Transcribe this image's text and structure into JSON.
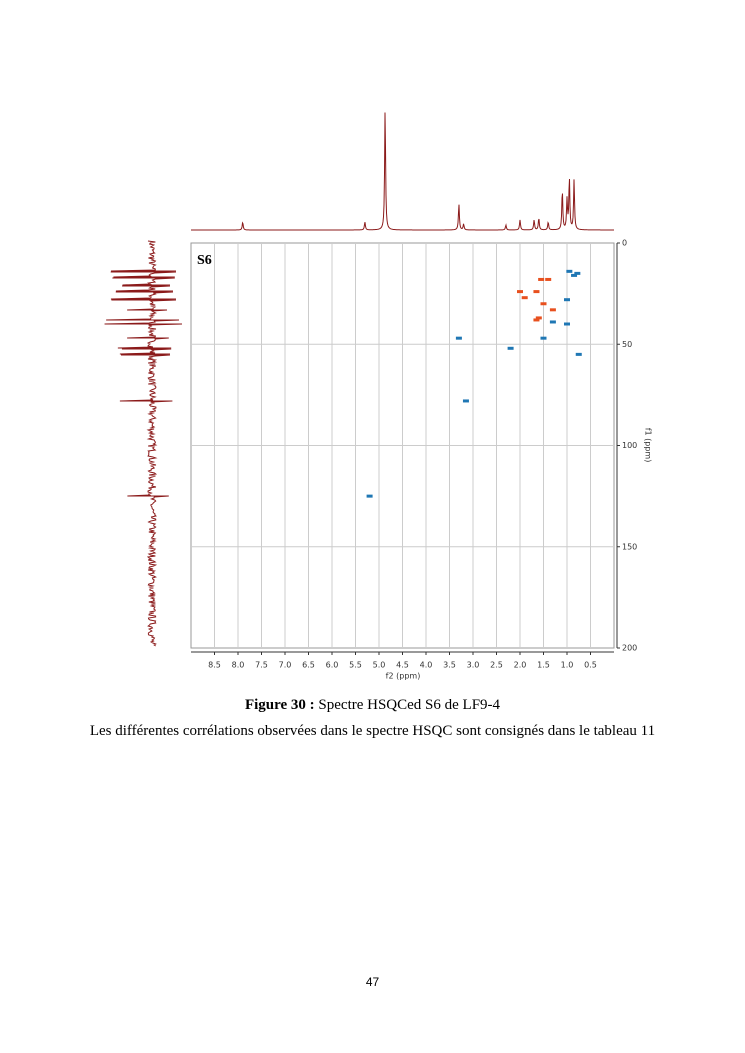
{
  "chart_data": {
    "type": "scatter",
    "panel_label": "S6",
    "x_label": "f2 (ppm)",
    "y_label": "f1 (ppm)",
    "xlim": [
      9,
      0
    ],
    "ylim": [
      0,
      200
    ],
    "xticks": [
      8.5,
      {
        "value": 8,
        "label": "8.0"
      },
      7.5,
      {
        "value": 7,
        "label": "7.0"
      },
      6.5,
      {
        "value": 6,
        "label": "6.0"
      },
      5.5,
      {
        "value": 5,
        "label": "5.0"
      },
      4.5,
      {
        "value": 4,
        "label": "4.0"
      },
      3.5,
      {
        "value": 3,
        "label": "3.0"
      },
      2.5,
      {
        "value": 2,
        "label": "2.0"
      },
      1.5,
      {
        "value": 1,
        "label": "1.0"
      },
      0.5
    ],
    "yticks": [
      0,
      50,
      100,
      150,
      200
    ],
    "grid": true,
    "series": [
      {
        "color": "#1f77b4",
        "x": [
          0.95,
          0.85,
          0.78,
          0.75,
          1.0,
          1.0,
          1.5,
          2.2,
          3.15,
          5.2,
          3.3,
          1.3
        ],
        "values": [
          14,
          16,
          15,
          55,
          28,
          40,
          47,
          52,
          78,
          125,
          47,
          39
        ]
      },
      {
        "color": "#e8501e",
        "x": [
          2.0,
          1.9,
          1.65,
          1.6,
          1.55,
          1.4,
          1.3,
          1.5,
          1.65
        ],
        "values": [
          24,
          27,
          24,
          37,
          18,
          18,
          33,
          30,
          38
        ]
      }
    ]
  },
  "caption": {
    "label": "Figure 30 :",
    "text": "Spectre HSQCed S6 de LF9-4"
  },
  "paragraph": "Les différentes corrélations observées dans le spectre HSQC sont consignés dans le tableau 11",
  "page_number": "47"
}
